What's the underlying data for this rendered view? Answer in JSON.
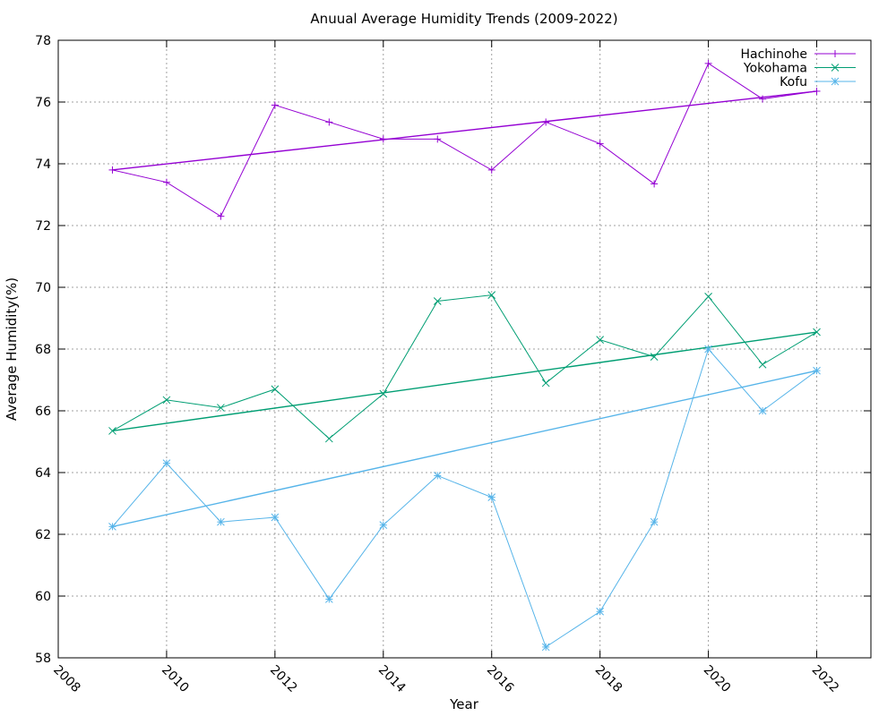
{
  "chart_data": {
    "type": "line",
    "title": "Anuual Average Humidity Trends (2009-2022)",
    "xlabel": "Year",
    "ylabel": "Average Humidity(%)",
    "xlim": [
      2008,
      2023
    ],
    "ylim": [
      58,
      78
    ],
    "xticks": [
      "2008",
      "2010",
      "2012",
      "2014",
      "2016",
      "2018",
      "2020",
      "2022"
    ],
    "yticks": [
      "58",
      "60",
      "62",
      "64",
      "66",
      "68",
      "70",
      "72",
      "74",
      "76",
      "78"
    ],
    "grid": true,
    "legend_position": "top-right",
    "series": [
      {
        "name": "Hachinohe",
        "color": "#9400d3",
        "marker": "plus",
        "points": [
          [
            2009,
            73.8
          ],
          [
            2010,
            73.4
          ],
          [
            2011,
            72.3
          ],
          [
            2012,
            75.9
          ],
          [
            2013,
            75.35
          ],
          [
            2014,
            74.8
          ],
          [
            2015,
            74.8
          ],
          [
            2016,
            73.8
          ],
          [
            2017,
            75.35
          ],
          [
            2018,
            74.65
          ],
          [
            2019,
            73.35
          ],
          [
            2020,
            77.25
          ],
          [
            2021,
            76.1
          ],
          [
            2022,
            76.35
          ]
        ],
        "trend": [
          [
            2009,
            73.8
          ],
          [
            2022,
            76.35
          ]
        ]
      },
      {
        "name": "Yokohama",
        "color": "#009e73",
        "marker": "cross",
        "points": [
          [
            2009,
            65.35
          ],
          [
            2010,
            66.35
          ],
          [
            2011,
            66.1
          ],
          [
            2012,
            66.7
          ],
          [
            2013,
            65.1
          ],
          [
            2014,
            66.55
          ],
          [
            2015,
            69.55
          ],
          [
            2016,
            69.75
          ],
          [
            2017,
            66.9
          ],
          [
            2018,
            68.3
          ],
          [
            2019,
            67.75
          ],
          [
            2020,
            69.7
          ],
          [
            2021,
            67.5
          ],
          [
            2022,
            68.55
          ]
        ],
        "trend": [
          [
            2009,
            65.35
          ],
          [
            2022,
            68.55
          ]
        ]
      },
      {
        "name": "Kofu",
        "color": "#56b4e9",
        "marker": "star",
        "points": [
          [
            2009,
            62.25
          ],
          [
            2010,
            64.3
          ],
          [
            2011,
            62.4
          ],
          [
            2012,
            62.55
          ],
          [
            2013,
            59.9
          ],
          [
            2014,
            62.3
          ],
          [
            2015,
            63.9
          ],
          [
            2016,
            63.2
          ],
          [
            2017,
            58.35
          ],
          [
            2018,
            59.5
          ],
          [
            2019,
            62.4
          ],
          [
            2020,
            68.0
          ],
          [
            2021,
            66.0
          ],
          [
            2022,
            67.3
          ]
        ],
        "trend": [
          [
            2009,
            62.25
          ],
          [
            2022,
            67.3
          ]
        ]
      }
    ]
  }
}
